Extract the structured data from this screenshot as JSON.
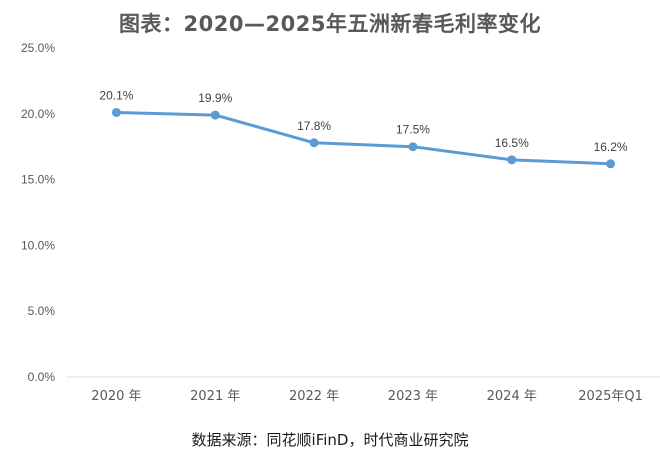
{
  "chart_data": {
    "type": "line",
    "title": "图表：2020—2025年五洲新春毛利率变化",
    "categories": [
      "2020 年",
      "2021 年",
      "2022 年",
      "2023 年",
      "2024 年",
      "2025年Q1"
    ],
    "series": [
      {
        "values": [
          20.1,
          19.9,
          17.8,
          17.5,
          16.5,
          16.2
        ],
        "data_labels": [
          "20.1%",
          "19.9%",
          "17.8%",
          "17.5%",
          "16.5%",
          "16.2%"
        ]
      }
    ],
    "ylim": [
      0,
      25
    ],
    "yticks": [
      0,
      5,
      10,
      15,
      20,
      25
    ],
    "ytick_labels": [
      "0.0%",
      "5.0%",
      "10.0%",
      "15.0%",
      "20.0%",
      "25.0%"
    ],
    "grid": false,
    "legend": "none",
    "line_color": "#5B9BD5"
  },
  "source_note": "数据来源：同花顺iFinD，时代商业研究院"
}
